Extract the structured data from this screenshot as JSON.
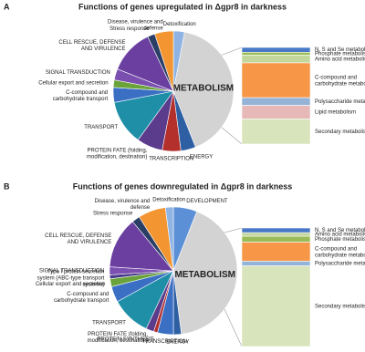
{
  "chart_data": [
    {
      "panel": "A",
      "type": "bar-of-pie",
      "title": "Functions of genes upregulated in Δgpr8  in darkness",
      "categories": [
        "Detoxification",
        "METABOLISM",
        "ENERGY",
        "TRANSCRIPTION",
        "PROTEIN FATE (folding,\nmodification, destination)",
        "TRANSPORT",
        "C-compound and\ncarbohydrate transport",
        "Cellular export and secretion",
        "SIGNAL TRANSDUCTION",
        "CELL RESCUE, DEFENSE\nAND VIRULENCE",
        "Stress response",
        "Disease, virulence and\ndefense"
      ],
      "values": [
        3,
        41,
        4,
        5,
        7,
        12,
        4,
        2,
        3,
        12,
        2,
        5
      ],
      "colors": [
        "#8fb4e3",
        "#d3d3d3",
        "#2e5fa3",
        "#b3302d",
        "#5b3b8c",
        "#1f8fa8",
        "#3a6fc4",
        "#6aa33a",
        "#7a4fb0",
        "#6a3fa0",
        "#2b3f66",
        "#f39530"
      ],
      "breakdown": {
        "categories": [
          "N, S and Se metabolism",
          "Phosphate metabolism",
          "Amino acid metabolism",
          "C-compound and\ncarbohydrate metabolism",
          "Polysaccharide metabolism",
          "Lipid metabolism",
          "Secondary metabolism"
        ],
        "values": [
          5,
          3,
          8,
          36,
          8,
          14,
          26
        ],
        "colors": [
          "#4a78c8",
          "#9bbb59",
          "#c3d69b",
          "#f79646",
          "#95b3d7",
          "#e6b9b8",
          "#d7e4bc"
        ]
      }
    },
    {
      "panel": "B",
      "type": "bar-of-pie",
      "title": "Functions of genes downregulated in Δgpr8  in darkness",
      "categories": [
        "DEVELOPMENT",
        "METABOLISM",
        "ENERGY",
        "TRANSCRIPTION",
        "PROTEIN SYNTHESIS",
        "PROTEIN FATE (folding,\nmodification, destination)",
        "TRANSPORT",
        "C-compound and\ncarbohydrate transport",
        "Cellular export and secretion",
        "Type I protein secretion\nsystem (ABC-type transport\nsystems)",
        "SIGNAL TRANSDUCTION",
        "CELL RESCUE, DEFENSE\nAND VIRULENCE",
        "Stress response",
        "Disease, virulence and\ndefense",
        "Detoxification"
      ],
      "values": [
        6,
        42,
        2,
        4,
        1,
        2,
        10,
        4,
        2,
        1,
        2,
        13,
        2,
        7,
        2
      ],
      "colors": [
        "#5b8fd6",
        "#d3d3d3",
        "#2e5fa3",
        "#3a6fc4",
        "#b3302d",
        "#5b3b8c",
        "#1f8fa8",
        "#3a6fc4",
        "#6aa33a",
        "#4a3a8a",
        "#7a4fb0",
        "#6a3fa0",
        "#2b3f66",
        "#f39530",
        "#8fb4e3"
      ],
      "breakdown": {
        "categories": [
          "N, S and Se metabolism",
          "Amino acid metabolism",
          "Phosphate metabolism",
          "C-compound and\ncarbohydrate metabolism",
          "Polysaccharide metabolism",
          "Secondary metabolism"
        ],
        "values": [
          4,
          3,
          5,
          16,
          4,
          68
        ],
        "colors": [
          "#4a78c8",
          "#c3d69b",
          "#9bbb59",
          "#f79646",
          "#95b3d7",
          "#d7e4bc"
        ]
      }
    }
  ]
}
